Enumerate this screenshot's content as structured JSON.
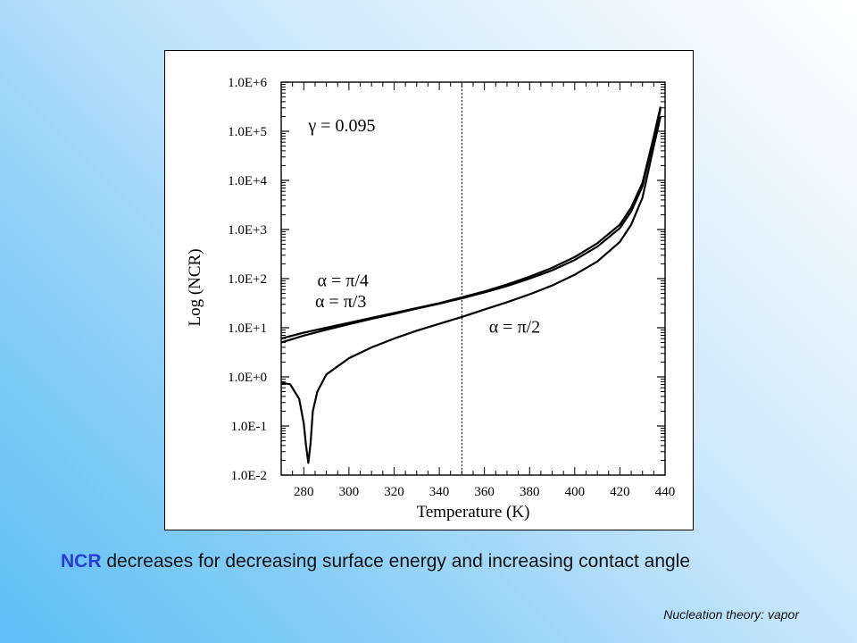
{
  "caption": {
    "highlight": "NCR",
    "rest": " decreases for decreasing surface energy and increasing contact angle"
  },
  "footer": "Nucleation theory: vapor",
  "colors": {
    "highlight": "#2a3bd6",
    "line": "#000000"
  },
  "chart_data": {
    "type": "line",
    "xlabel": "Temperature (K)",
    "ylabel": "Log (NCR)",
    "xlim": [
      270,
      440
    ],
    "ylim_log10": [
      -2,
      6
    ],
    "y_scale": "log",
    "x_ticks": [
      280,
      300,
      320,
      340,
      360,
      380,
      400,
      420,
      440
    ],
    "y_tick_labels": [
      "1.0E-2",
      "1.0E-1",
      "1.0E+0",
      "1.0E+1",
      "1.0E+2",
      "1.0E+3",
      "1.0E+4",
      "1.0E+5",
      "1.0E+6"
    ],
    "grid": false,
    "reference_line": {
      "x": 350,
      "style": "dotted"
    },
    "annotations": [
      {
        "text": "γ = 0.095",
        "at": [
          282,
          5
        ]
      },
      {
        "text": "α = π/4",
        "at": [
          286,
          1.85
        ]
      },
      {
        "text": "α = π/3",
        "at": [
          285,
          1.42
        ]
      },
      {
        "text": "α = π/2",
        "at": [
          362,
          0.9
        ]
      }
    ],
    "series": [
      {
        "name": "α = π/4",
        "x": [
          270,
          280,
          290,
          300,
          310,
          320,
          330,
          340,
          350,
          360,
          370,
          380,
          390,
          400,
          410,
          420,
          425,
          430,
          435,
          438
        ],
        "log10_y": [
          0.78,
          0.9,
          1.0,
          1.1,
          1.2,
          1.3,
          1.4,
          1.5,
          1.62,
          1.74,
          1.88,
          2.04,
          2.22,
          2.44,
          2.72,
          3.1,
          3.45,
          3.95,
          4.9,
          5.5
        ]
      },
      {
        "name": "α = π/3",
        "x": [
          270,
          280,
          290,
          300,
          310,
          320,
          330,
          340,
          350,
          360,
          370,
          380,
          390,
          400,
          410,
          420,
          425,
          430,
          435,
          438
        ],
        "log10_y": [
          0.7,
          0.84,
          0.96,
          1.07,
          1.18,
          1.28,
          1.39,
          1.49,
          1.6,
          1.72,
          1.85,
          2.0,
          2.17,
          2.38,
          2.65,
          3.03,
          3.37,
          3.88,
          4.85,
          5.45
        ]
      },
      {
        "name": "α = π/2",
        "x": [
          270,
          274,
          278,
          280,
          281,
          282,
          283,
          284,
          286,
          290,
          300,
          310,
          320,
          330,
          340,
          350,
          360,
          370,
          380,
          390,
          400,
          410,
          420,
          425,
          430,
          435,
          438
        ],
        "log10_y": [
          -0.12,
          -0.15,
          -0.45,
          -0.95,
          -1.4,
          -1.75,
          -1.35,
          -0.7,
          -0.3,
          0.05,
          0.38,
          0.6,
          0.78,
          0.94,
          1.08,
          1.22,
          1.37,
          1.52,
          1.68,
          1.86,
          2.08,
          2.35,
          2.75,
          3.1,
          3.65,
          4.7,
          5.3
        ]
      }
    ]
  }
}
